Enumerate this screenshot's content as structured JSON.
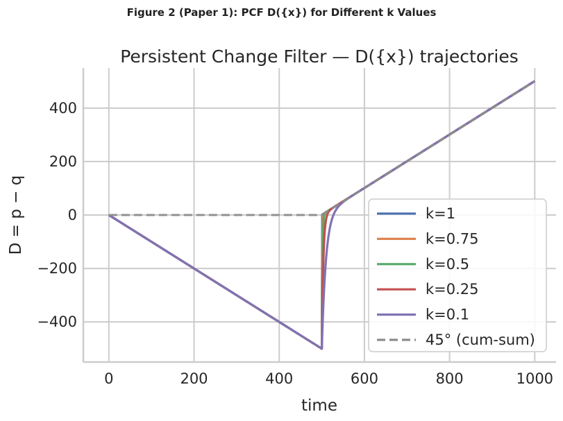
{
  "figure_title": "Figure 2 (Paper 1): PCF D({x}) for Different k Values",
  "chart_data": {
    "type": "line",
    "title": "Persistent Change Filter — D({x}) trajectories",
    "xlabel": "time",
    "ylabel": "D = p − q",
    "xlim": [
      -60,
      1050
    ],
    "ylim": [
      -550,
      550
    ],
    "xticks": [
      0,
      200,
      400,
      600,
      800,
      1000
    ],
    "yticks": [
      -400,
      -200,
      0,
      200,
      400
    ],
    "xtick_labels": [
      "0",
      "200",
      "400",
      "600",
      "800",
      "1000"
    ],
    "ytick_labels": [
      "−400",
      "−200",
      "0",
      "200",
      "400"
    ],
    "grid": true,
    "legend_position": "lower-right",
    "change_point": 500,
    "series": [
      {
        "name": "k=1",
        "k": 1,
        "color": "#4c72b0",
        "style": "solid"
      },
      {
        "name": "k=0.75",
        "k": 0.75,
        "color": "#dd8452",
        "style": "solid"
      },
      {
        "name": "k=0.5",
        "k": 0.5,
        "color": "#55a868",
        "style": "solid"
      },
      {
        "name": "k=0.25",
        "k": 0.25,
        "color": "#c44e52",
        "style": "solid"
      },
      {
        "name": "k=0.1",
        "k": 0.1,
        "color": "#8172b3",
        "style": "solid"
      },
      {
        "name": "45° (cum-sum)",
        "color": "#8c8c8c",
        "style": "dashed",
        "x": [
          0,
          500,
          1000
        ],
        "y": [
          0,
          0,
          500
        ]
      }
    ]
  }
}
